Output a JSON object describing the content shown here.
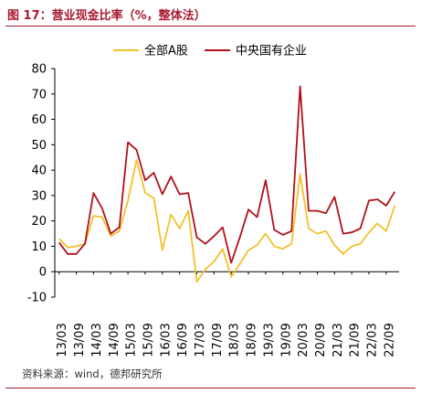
{
  "title": "图 17：营业现金比率（%，整体法）",
  "source": "资料来源：wind，德邦研究所",
  "colors": {
    "brand": "#a8192e",
    "series_a": "#f2c12e",
    "series_b": "#b0121b"
  },
  "chart_data": {
    "type": "line",
    "x": [
      "13/03",
      "13/06",
      "13/09",
      "13/12",
      "14/03",
      "14/06",
      "14/09",
      "14/12",
      "15/03",
      "15/06",
      "15/09",
      "15/12",
      "16/03",
      "16/06",
      "16/09",
      "16/12",
      "17/03",
      "17/06",
      "17/09",
      "17/12",
      "18/03",
      "18/06",
      "18/09",
      "18/12",
      "19/03",
      "19/06",
      "19/09",
      "19/12",
      "20/03",
      "20/06",
      "20/09",
      "20/12",
      "21/03",
      "21/06",
      "21/09",
      "21/12",
      "22/03",
      "22/06",
      "22/09",
      "22/12"
    ],
    "x_tick_labels": [
      "13/03",
      "13/09",
      "14/03",
      "14/09",
      "15/03",
      "15/09",
      "16/03",
      "16/09",
      "17/03",
      "17/09",
      "18/03",
      "18/09",
      "19/03",
      "19/09",
      "20/03",
      "20/09",
      "21/03",
      "21/09",
      "22/03",
      "22/09"
    ],
    "series": [
      {
        "name": "全部A股",
        "color": "#f2c12e",
        "values": [
          13,
          9.5,
          10,
          11,
          22,
          21.5,
          14,
          16,
          28,
          44,
          31,
          29,
          8.5,
          22.5,
          17,
          24,
          -4,
          1,
          4,
          9,
          -2,
          3,
          8.5,
          10.5,
          15,
          10,
          9,
          11,
          38.5,
          17,
          15,
          16,
          10.5,
          7,
          10,
          11,
          15.5,
          19,
          16,
          26
        ]
      },
      {
        "name": "中央国有企业",
        "color": "#b0121b",
        "values": [
          11.5,
          7,
          7,
          11,
          31,
          25,
          15,
          17.5,
          51,
          48,
          36,
          39,
          30.5,
          37.5,
          30.5,
          31,
          13.5,
          11,
          14,
          17.5,
          3.5,
          13.5,
          24.5,
          21.5,
          36,
          16.5,
          14.5,
          16,
          73,
          24,
          24,
          23,
          29.5,
          15,
          15.5,
          17,
          28,
          28.5,
          26,
          31.5
        ]
      }
    ],
    "ylim": [
      -10,
      80
    ],
    "yticks": [
      -10,
      0,
      10,
      20,
      30,
      40,
      50,
      60,
      70,
      80
    ],
    "grid": false,
    "legend": "top"
  }
}
